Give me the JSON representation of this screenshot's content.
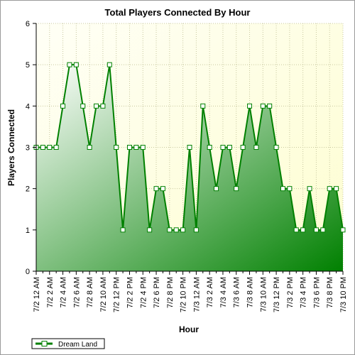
{
  "chart_data": {
    "type": "area",
    "title": "Total Players Connected By Hour",
    "xlabel": "Hour",
    "ylabel": "Players Connected",
    "ylim": [
      0,
      6
    ],
    "yticks": [
      0,
      1,
      2,
      3,
      4,
      5,
      6
    ],
    "grid": true,
    "legend_position": "bottom-left",
    "x_tick_labels": [
      "7/2 12 AM",
      "7/2 2 AM",
      "7/2 4 AM",
      "7/2 6 AM",
      "7/2 8 AM",
      "7/2 10 AM",
      "7/2 12 PM",
      "7/2 2 PM",
      "7/2 4 PM",
      "7/2 6 PM",
      "7/2 8 PM",
      "7/2 10 PM",
      "7/3 12 AM",
      "7/3 2 AM",
      "7/3 4 AM",
      "7/3 6 AM",
      "7/3 8 AM",
      "7/3 10 AM",
      "7/3 12 PM",
      "7/3 2 PM",
      "7/3 4 PM",
      "7/3 6 PM",
      "7/3 8 PM",
      "7/3 10 PM"
    ],
    "series": [
      {
        "name": "Dream Land",
        "color": "#008000",
        "values": [
          3,
          3,
          3,
          3,
          4,
          5,
          5,
          4,
          3,
          4,
          4,
          5,
          3,
          1,
          3,
          3,
          3,
          1,
          2,
          2,
          1,
          1,
          1,
          3,
          1,
          4,
          3,
          2,
          3,
          3,
          2,
          3,
          4,
          3,
          4,
          4,
          3,
          2,
          2,
          1,
          1,
          2,
          1,
          1,
          2,
          2,
          1
        ]
      }
    ]
  }
}
